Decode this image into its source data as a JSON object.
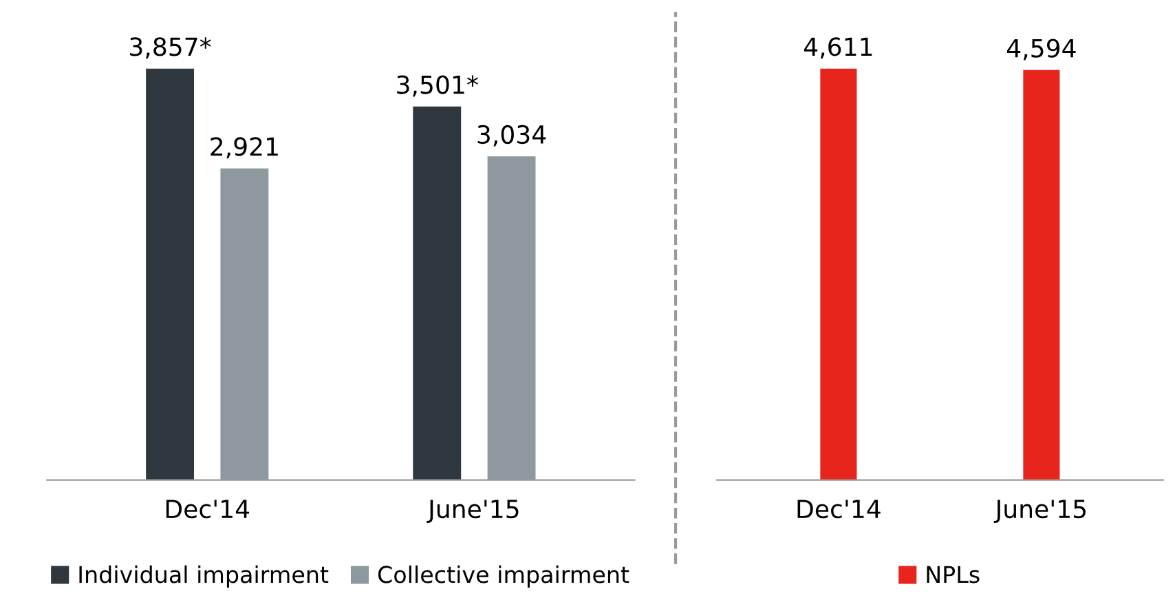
{
  "chart_data": [
    {
      "type": "bar",
      "categories": [
        "Dec'14",
        "June'15"
      ],
      "legend": "bottom",
      "grid": false,
      "tick_labels": "x",
      "series": [
        {
          "name": "Individual impairment",
          "color": "#2f383e",
          "values": [
            3857,
            3501
          ],
          "value_labels": [
            "3,857*",
            "3,501*"
          ]
        },
        {
          "name": "Collective impairment",
          "color": "#8d999f",
          "values": [
            2921,
            3034
          ],
          "value_labels": [
            "2,921",
            "3,034"
          ]
        }
      ]
    },
    {
      "type": "bar",
      "categories": [
        "Dec'14",
        "June'15"
      ],
      "legend": "bottom",
      "grid": false,
      "tick_labels": "x",
      "series": [
        {
          "name": "NPLs",
          "color": "#e8251c",
          "values": [
            4611,
            4594
          ],
          "value_labels": [
            "4,611",
            "4,594"
          ]
        }
      ]
    }
  ]
}
